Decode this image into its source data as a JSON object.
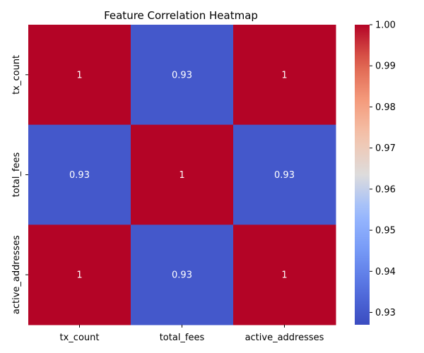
{
  "chart_data": {
    "type": "heatmap",
    "title": "Feature Correlation Heatmap",
    "xlabel": "",
    "ylabel": "",
    "x_categories": [
      "tx_count",
      "total_fees",
      "active_addresses"
    ],
    "y_categories": [
      "tx_count",
      "total_fees",
      "active_addresses"
    ],
    "values": [
      [
        1,
        0.93,
        1
      ],
      [
        0.93,
        1,
        0.93
      ],
      [
        1,
        0.93,
        1
      ]
    ],
    "cell_labels": [
      [
        "1",
        "0.93",
        "1"
      ],
      [
        "0.93",
        "1",
        "0.93"
      ],
      [
        "1",
        "0.93",
        "1"
      ]
    ],
    "colormap": "coolwarm",
    "colors": {
      "low": "#3b4cc0",
      "mid": "#dddcdc",
      "high": "#b40426"
    },
    "vmin": 0.927,
    "vmax": 1.0,
    "colorbar_ticks": [
      0.93,
      0.94,
      0.95,
      0.96,
      0.97,
      0.98,
      0.99,
      1.0
    ],
    "colorbar_tick_labels": [
      "0.93",
      "0.94",
      "0.95",
      "0.96",
      "0.97",
      "0.98",
      "0.99",
      "1.00"
    ],
    "grid": false
  }
}
